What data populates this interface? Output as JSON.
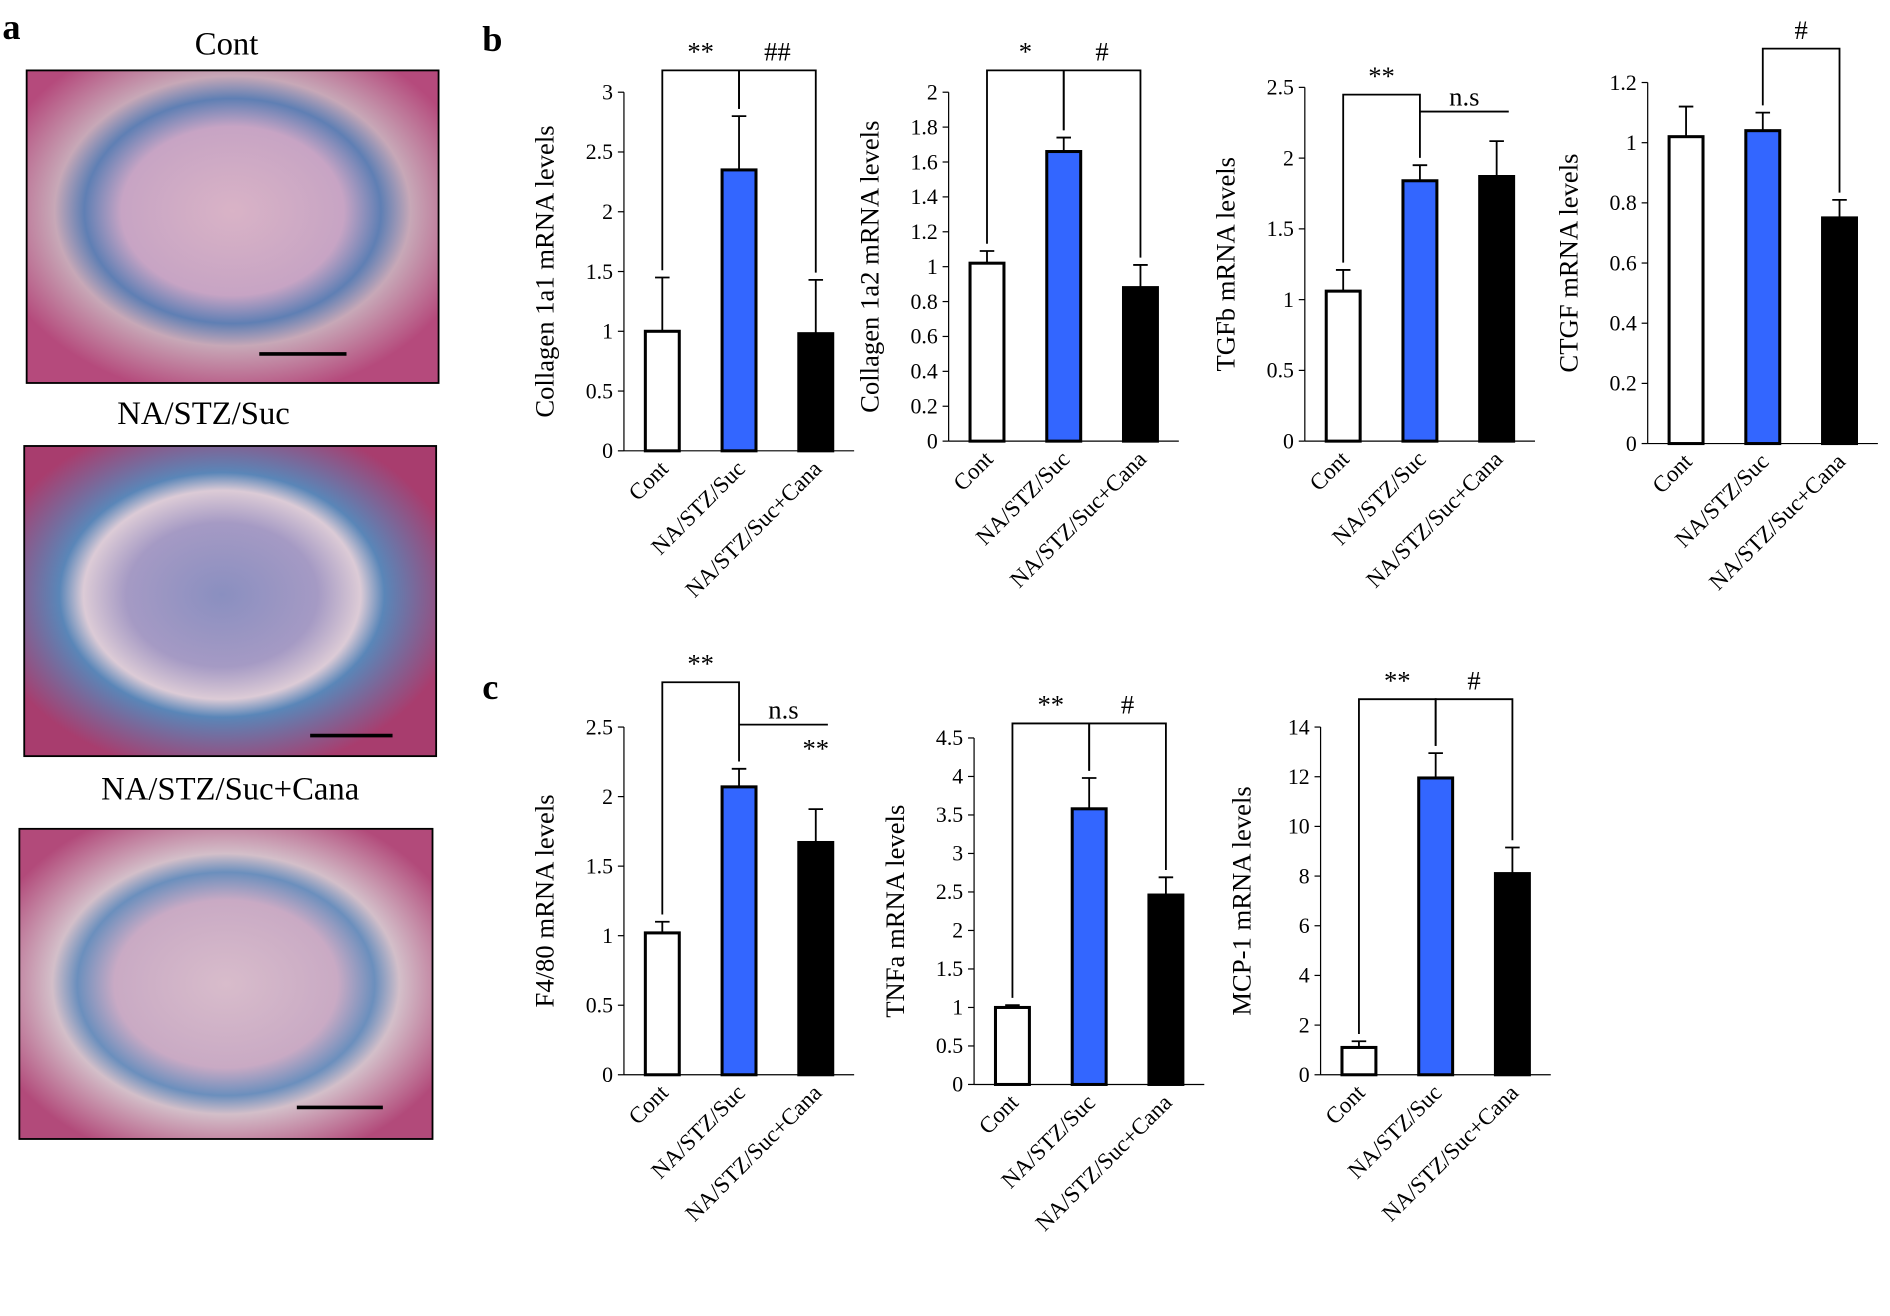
{
  "panels": {
    "a": "a",
    "b": "b",
    "c": "c"
  },
  "images": [
    {
      "label": "Cont"
    },
    {
      "label": "NA/STZ/Suc"
    },
    {
      "label": "NA/STZ/Suc+Cana"
    }
  ],
  "chart_data": [
    {
      "type": "bar",
      "ylabel": "Collagen 1a1 mRNA levels",
      "categories": [
        "Cont",
        "NA/STZ/Suc",
        "NA/STZ/Suc+Cana"
      ],
      "values": [
        1.0,
        2.35,
        0.98
      ],
      "errors": [
        0.45,
        0.45,
        0.45
      ],
      "colors": [
        "#ffffff",
        "#3366ff",
        "#000000"
      ],
      "ylim": [
        0,
        3
      ],
      "yticks": [
        0,
        0.5,
        1,
        1.5,
        2,
        2.5,
        3
      ],
      "annotations": [
        "**",
        "##"
      ]
    },
    {
      "type": "bar",
      "ylabel": "Collagen 1a2 mRNA levels",
      "categories": [
        "Cont",
        "NA/STZ/Suc",
        "NA/STZ/Suc+Cana"
      ],
      "values": [
        1.02,
        1.66,
        0.88
      ],
      "errors": [
        0.07,
        0.08,
        0.13
      ],
      "colors": [
        "#ffffff",
        "#3366ff",
        "#000000"
      ],
      "ylim": [
        0,
        2
      ],
      "yticks": [
        0,
        0.2,
        0.4,
        0.6,
        0.8,
        1,
        1.2,
        1.4,
        1.6,
        1.8,
        2
      ],
      "annotations": [
        "*",
        "#"
      ]
    },
    {
      "type": "bar",
      "ylabel": "TGFb mRNA levels",
      "categories": [
        "Cont",
        "NA/STZ/Suc",
        "NA/STZ/Suc+Cana"
      ],
      "values": [
        1.06,
        1.84,
        1.87
      ],
      "errors": [
        0.15,
        0.11,
        0.25
      ],
      "colors": [
        "#ffffff",
        "#3366ff",
        "#000000"
      ],
      "ylim": [
        0,
        2.5
      ],
      "yticks": [
        0,
        0.5,
        1,
        1.5,
        2,
        2.5
      ],
      "annotations": [
        "**",
        "n.s"
      ]
    },
    {
      "type": "bar",
      "ylabel": "CTGF mRNA levels",
      "categories": [
        "Cont",
        "NA/STZ/Suc",
        "NA/STZ/Suc+Cana"
      ],
      "values": [
        1.02,
        1.04,
        0.75
      ],
      "errors": [
        0.1,
        0.06,
        0.06
      ],
      "colors": [
        "#ffffff",
        "#3366ff",
        "#000000"
      ],
      "ylim": [
        0,
        1.2
      ],
      "yticks": [
        0,
        0.2,
        0.4,
        0.6,
        0.8,
        1,
        1.2
      ],
      "annotations": [
        "#"
      ]
    },
    {
      "type": "bar",
      "ylabel": "F4/80 mRNA levels",
      "categories": [
        "Cont",
        "NA/STZ/Suc",
        "NA/STZ/Suc+Cana"
      ],
      "values": [
        1.02,
        2.07,
        1.67
      ],
      "errors": [
        0.08,
        0.13,
        0.24
      ],
      "colors": [
        "#ffffff",
        "#3366ff",
        "#000000"
      ],
      "ylim": [
        0,
        2.5
      ],
      "yticks": [
        0,
        0.5,
        1,
        1.5,
        2,
        2.5
      ],
      "annotations": [
        "**",
        "n.s",
        "**"
      ]
    },
    {
      "type": "bar",
      "ylabel": "TNFa mRNA levels",
      "categories": [
        "Cont",
        "NA/STZ/Suc",
        "NA/STZ/Suc+Cana"
      ],
      "values": [
        1.0,
        3.58,
        2.46
      ],
      "errors": [
        0.03,
        0.4,
        0.23
      ],
      "colors": [
        "#ffffff",
        "#3366ff",
        "#000000"
      ],
      "ylim": [
        0,
        4.5
      ],
      "yticks": [
        0,
        0.5,
        1,
        1.5,
        2,
        2.5,
        3,
        3.5,
        4,
        4.5
      ],
      "annotations": [
        "**",
        "#"
      ]
    },
    {
      "type": "bar",
      "ylabel": "MCP-1 mRNA levels",
      "categories": [
        "Cont",
        "NA/STZ/Suc",
        "NA/STZ/Suc+Cana"
      ],
      "values": [
        1.1,
        11.95,
        8.1
      ],
      "errors": [
        0.25,
        1.0,
        1.05
      ],
      "colors": [
        "#ffffff",
        "#3366ff",
        "#000000"
      ],
      "ylim": [
        0,
        14
      ],
      "yticks": [
        0,
        2,
        4,
        6,
        8,
        10,
        12,
        14
      ],
      "annotations": [
        "**",
        "#"
      ]
    }
  ]
}
